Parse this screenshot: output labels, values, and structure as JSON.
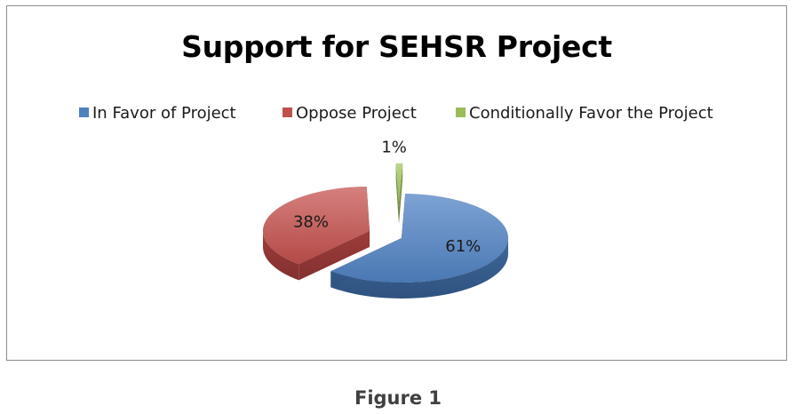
{
  "chart_data": {
    "type": "pie",
    "title": "Support for SEHSR Project",
    "categories": [
      "In Favor of Project",
      "Oppose Project",
      "Conditionally Favor the Project"
    ],
    "values": [
      61,
      38,
      1
    ],
    "labels": [
      "61%",
      "38%",
      "1%"
    ],
    "colors": [
      "#4f81bd",
      "#c0504d",
      "#9bbb59"
    ],
    "legend_position": "top",
    "style": "3d-exploded"
  },
  "caption": "Figure 1"
}
